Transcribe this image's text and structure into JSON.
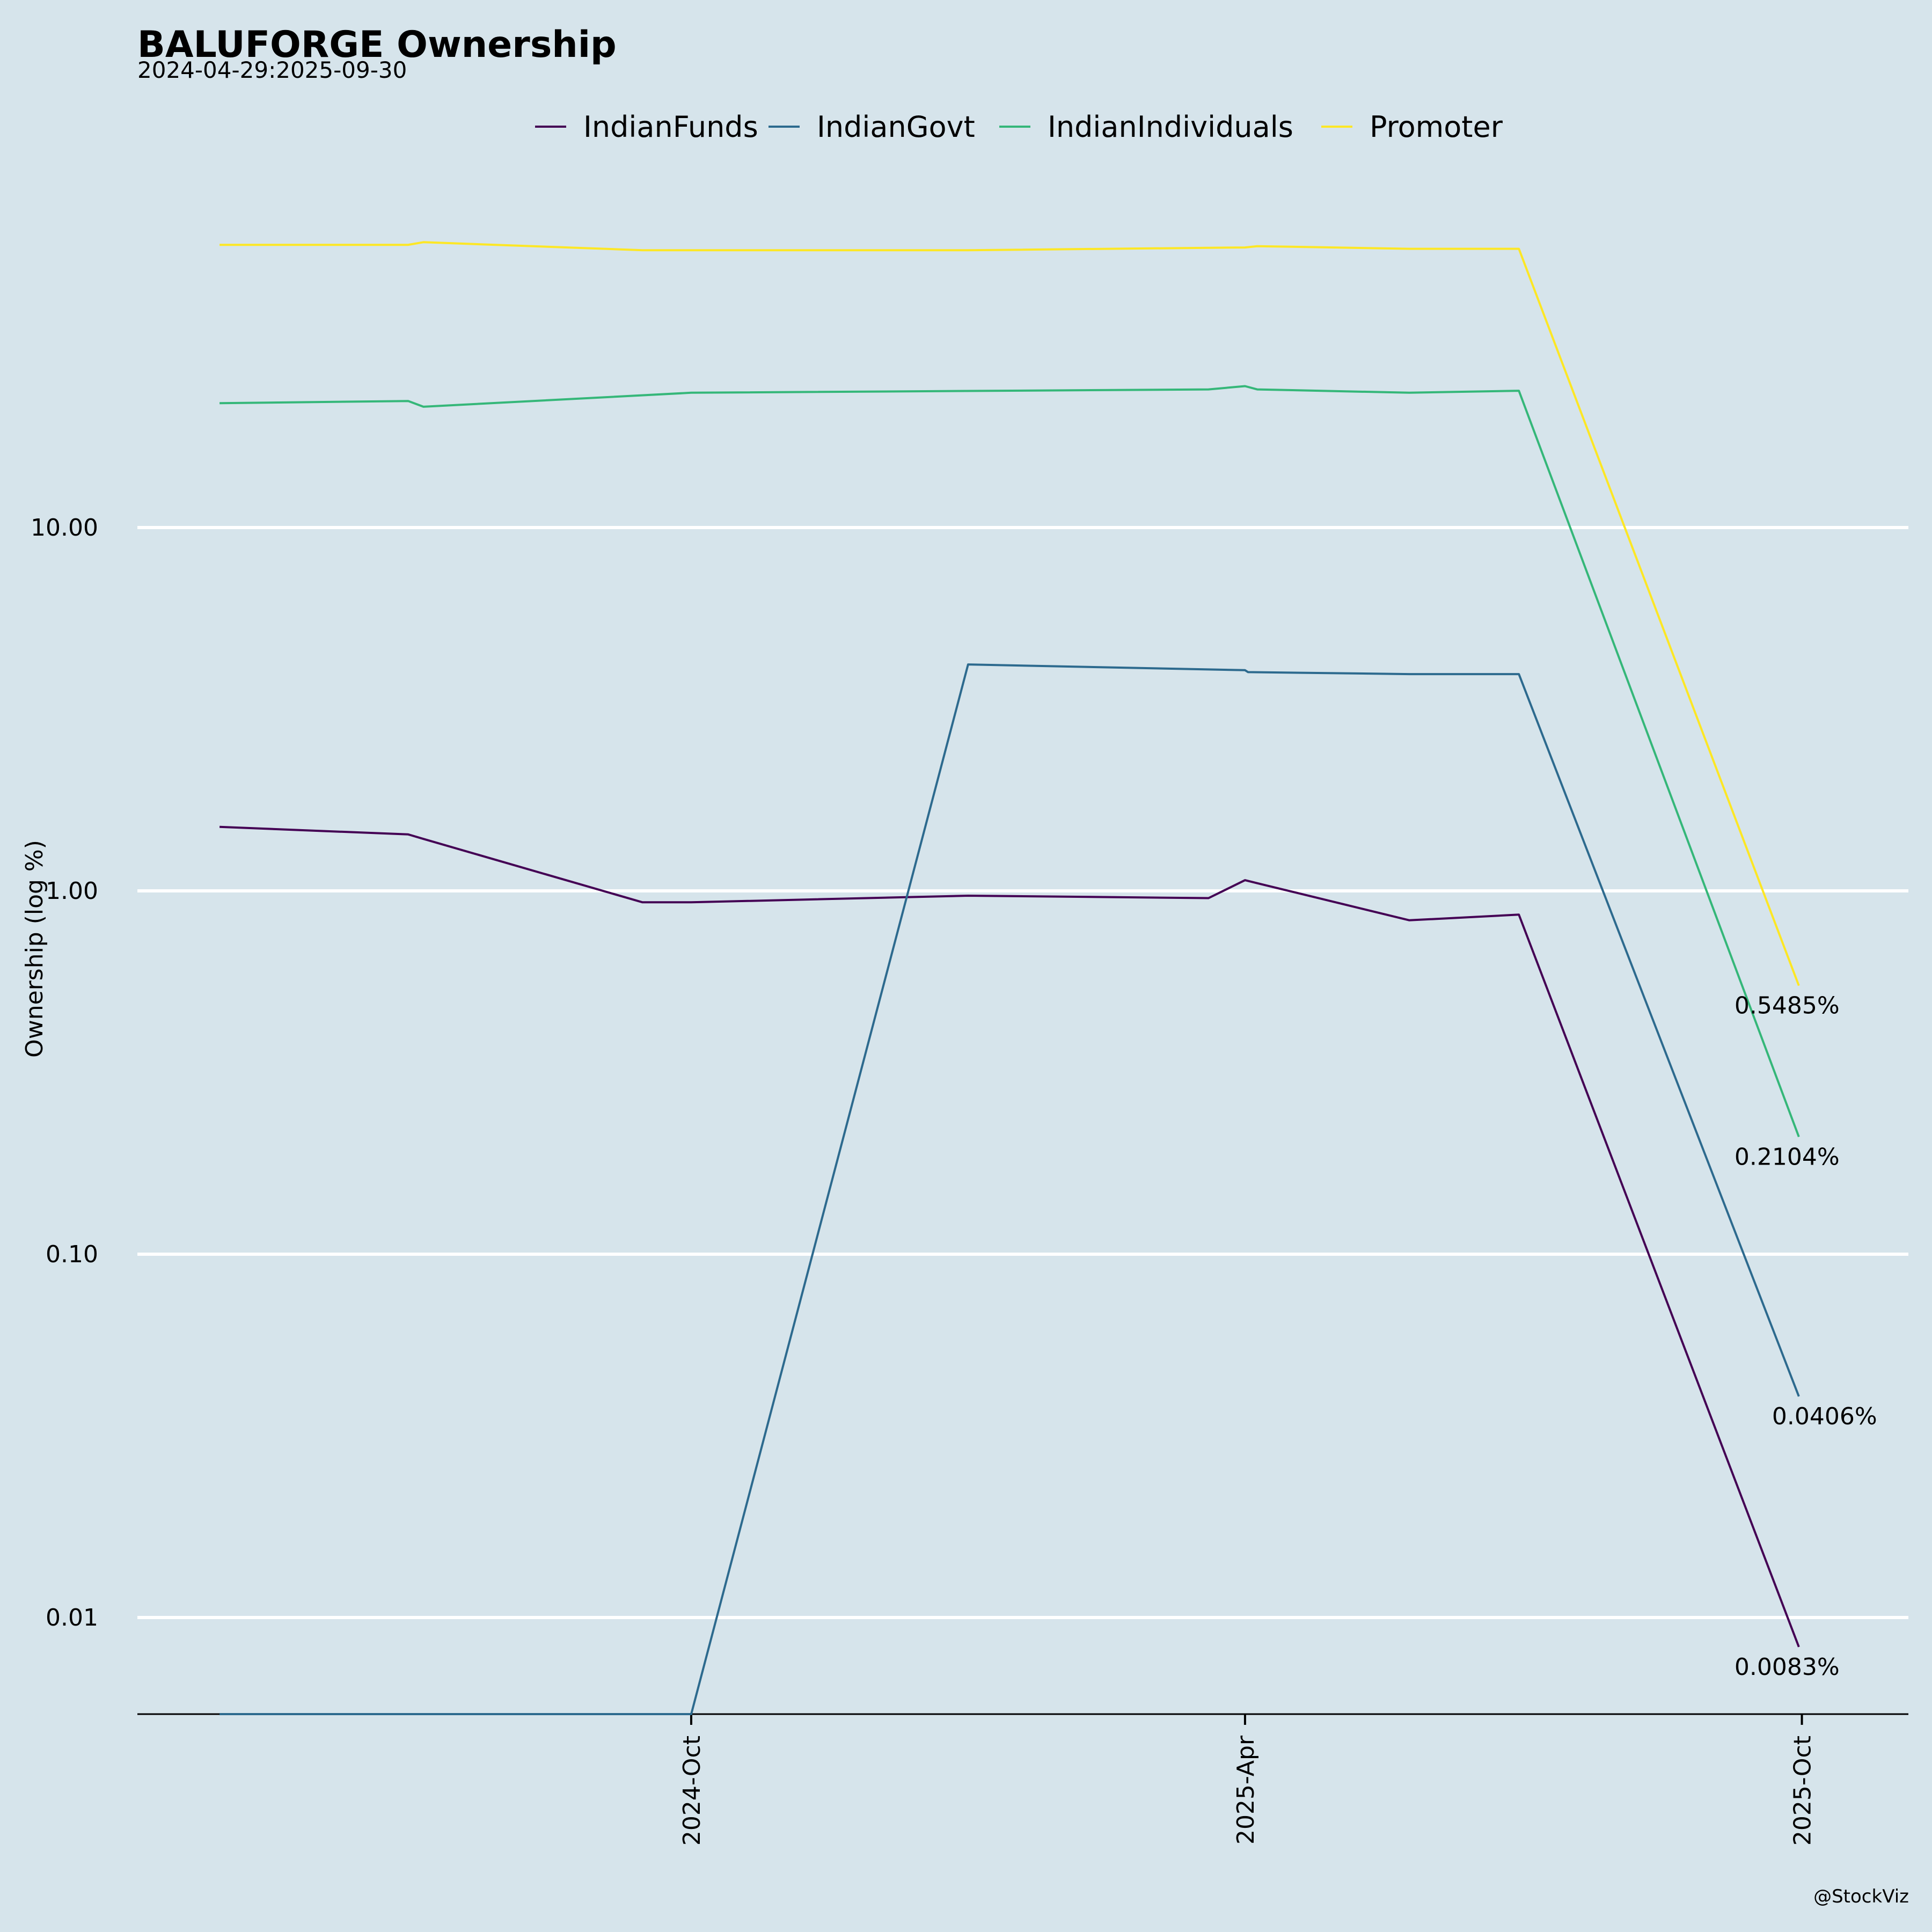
{
  "chart_data": {
    "type": "line",
    "title": "BALUFORGE Ownership",
    "subtitle": "2024-04-29:2025-09-30",
    "ylabel": "Ownership (log %)",
    "xlabel": "",
    "y_scale": "log",
    "ylim": [
      0.005,
      100
    ],
    "y_ticks": [
      {
        "value": 10,
        "label": "10.00"
      },
      {
        "value": 1,
        "label": "1.00"
      },
      {
        "value": 0.1,
        "label": "0.10"
      },
      {
        "value": 0.01,
        "label": "0.01"
      }
    ],
    "x_range": [
      "2024-04-02",
      "2025-11-05"
    ],
    "x_ticks": [
      {
        "date": "2024-10-01",
        "label": "2024-Oct"
      },
      {
        "date": "2025-04-01",
        "label": "2025-Apr"
      },
      {
        "date": "2025-10-01",
        "label": "2025-Oct"
      }
    ],
    "grid": "horizontal",
    "legend_position": "top-center",
    "credit": "@StockViz",
    "series": [
      {
        "name": "IndianFunds",
        "color": "#440154",
        "points": [
          [
            "2024-04-29",
            1.5
          ],
          [
            "2024-06-30",
            1.43
          ],
          [
            "2024-07-05",
            1.39
          ],
          [
            "2024-09-15",
            0.93
          ],
          [
            "2024-10-01",
            0.93
          ],
          [
            "2024-12-31",
            0.97
          ],
          [
            "2025-03-20",
            0.955
          ],
          [
            "2025-04-01",
            1.07
          ],
          [
            "2025-04-05",
            1.05
          ],
          [
            "2025-05-25",
            0.83
          ],
          [
            "2025-06-30",
            0.86
          ],
          [
            "2025-09-30",
            0.0083
          ]
        ],
        "end_label": "0.0083%"
      },
      {
        "name": "IndianGovt",
        "color": "#2d6a8e",
        "points": [
          [
            "2024-04-29",
            0.005
          ],
          [
            "2024-10-01",
            0.005
          ],
          [
            "2024-12-31",
            4.2
          ],
          [
            "2025-04-01",
            4.05
          ],
          [
            "2025-04-02",
            4.0
          ],
          [
            "2025-05-25",
            3.95
          ],
          [
            "2025-06-30",
            3.95
          ],
          [
            "2025-09-30",
            0.0406
          ]
        ],
        "end_label": "0.0406%"
      },
      {
        "name": "IndianIndividuals",
        "color": "#35b779",
        "points": [
          [
            "2024-04-29",
            22.0
          ],
          [
            "2024-06-30",
            22.3
          ],
          [
            "2024-07-05",
            21.5
          ],
          [
            "2024-10-01",
            23.5
          ],
          [
            "2025-03-20",
            24.0
          ],
          [
            "2025-04-01",
            24.5
          ],
          [
            "2025-04-05",
            24.0
          ],
          [
            "2025-05-25",
            23.5
          ],
          [
            "2025-06-30",
            23.8
          ],
          [
            "2025-09-30",
            0.2104
          ]
        ],
        "end_label": "0.2104%"
      },
      {
        "name": "Promoter",
        "color": "#fde725",
        "points": [
          [
            "2024-04-29",
            60.0
          ],
          [
            "2024-06-30",
            60.0
          ],
          [
            "2024-07-05",
            61.0
          ],
          [
            "2024-09-15",
            58.0
          ],
          [
            "2024-12-31",
            58.0
          ],
          [
            "2025-04-01",
            59.0
          ],
          [
            "2025-04-05",
            59.5
          ],
          [
            "2025-05-25",
            58.5
          ],
          [
            "2025-06-30",
            58.5
          ],
          [
            "2025-09-30",
            0.5485
          ]
        ],
        "end_label": "0.5485%"
      }
    ]
  }
}
